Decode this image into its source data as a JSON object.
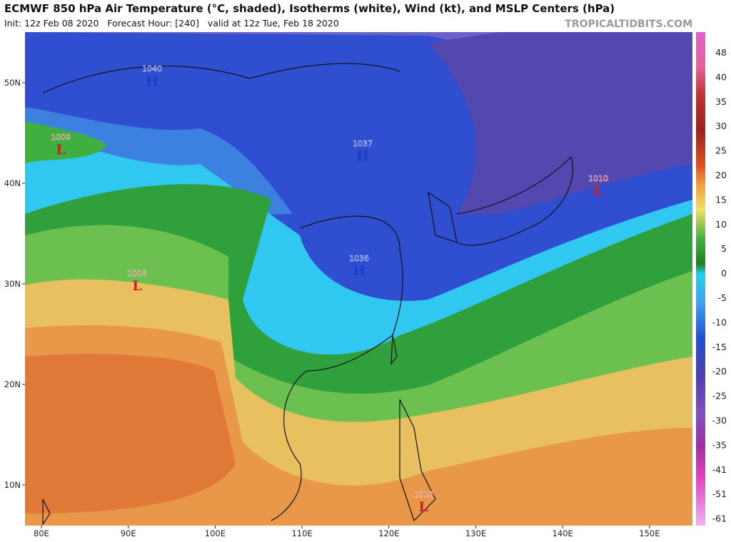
{
  "header": {
    "title": "ECMWF 850 hPa Air Temperature (°C, shaded), Isotherms (white), Wind (kt), and MSLP Centers (hPa)",
    "subtitle": "Init: 12z Feb 08 2020   Forecast Hour: [240]   valid at 12z Tue, Feb 18 2020",
    "brand": "TROPICALTIDBITS.COM"
  },
  "map": {
    "latitude_labels": [
      "50N",
      "40N",
      "30N",
      "20N",
      "10N"
    ],
    "longitude_labels": [
      "80E",
      "90E",
      "100E",
      "110E",
      "120E",
      "130E",
      "140E",
      "150E"
    ],
    "pressure_centers": [
      {
        "value": 1040,
        "kind": "H"
      },
      {
        "value": 1009,
        "kind": "L"
      },
      {
        "value": 1037,
        "kind": "H"
      },
      {
        "value": 1010,
        "kind": "L"
      },
      {
        "value": 1005,
        "kind": "L"
      },
      {
        "value": 1036,
        "kind": "H"
      },
      {
        "value": 1010,
        "kind": "L"
      }
    ]
  },
  "colorbar": {
    "labels": [
      48,
      40,
      35,
      30,
      25,
      20,
      15,
      10,
      5,
      0,
      -5,
      -10,
      -15,
      -20,
      -25,
      -30,
      -35,
      -41,
      -51,
      -61
    ]
  }
}
